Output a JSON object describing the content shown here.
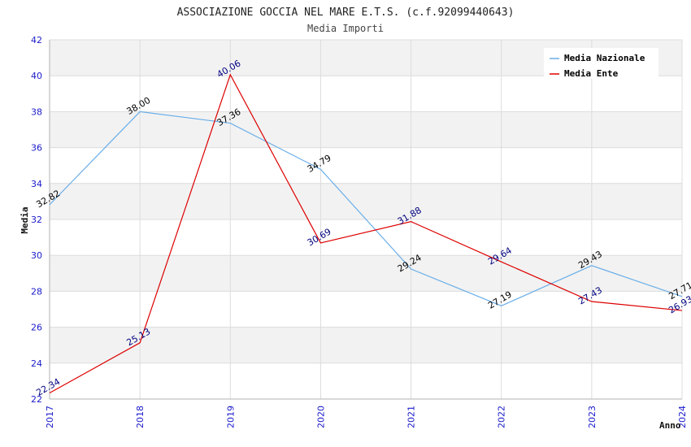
{
  "chart_data": {
    "type": "line",
    "title": "ASSOCIAZIONE GOCCIA NEL MARE E.T.S. (c.f.92099440643)",
    "subtitle": "Media Importi",
    "xlabel": "Anno",
    "ylabel": "Media",
    "categories": [
      "2017",
      "2018",
      "2019",
      "2020",
      "2021",
      "2022",
      "2023",
      "2024"
    ],
    "ylim": [
      22,
      42
    ],
    "yticks": [
      22,
      24,
      26,
      28,
      30,
      32,
      34,
      36,
      38,
      40,
      42
    ],
    "grid": true,
    "legend_position": "top-right",
    "series": [
      {
        "name": "Media Nazionale",
        "color": "#6aaee8",
        "label_color": "#000000",
        "values": [
          32.82,
          38.0,
          37.36,
          34.79,
          29.24,
          27.19,
          29.43,
          27.71
        ],
        "labels": [
          "32.82",
          "38.00",
          "37.36",
          "34.79",
          "29.24",
          "27.19",
          "29.43",
          "27.71"
        ]
      },
      {
        "name": "Media Ente",
        "color": "#dd0000",
        "label_color": "#000080",
        "values": [
          22.34,
          25.13,
          40.06,
          30.69,
          31.88,
          29.64,
          27.43,
          26.93
        ],
        "labels": [
          "22.34",
          "25.13",
          "40.06",
          "30.69",
          "31.88",
          "29.64",
          "27.43",
          "26.93"
        ]
      }
    ]
  }
}
